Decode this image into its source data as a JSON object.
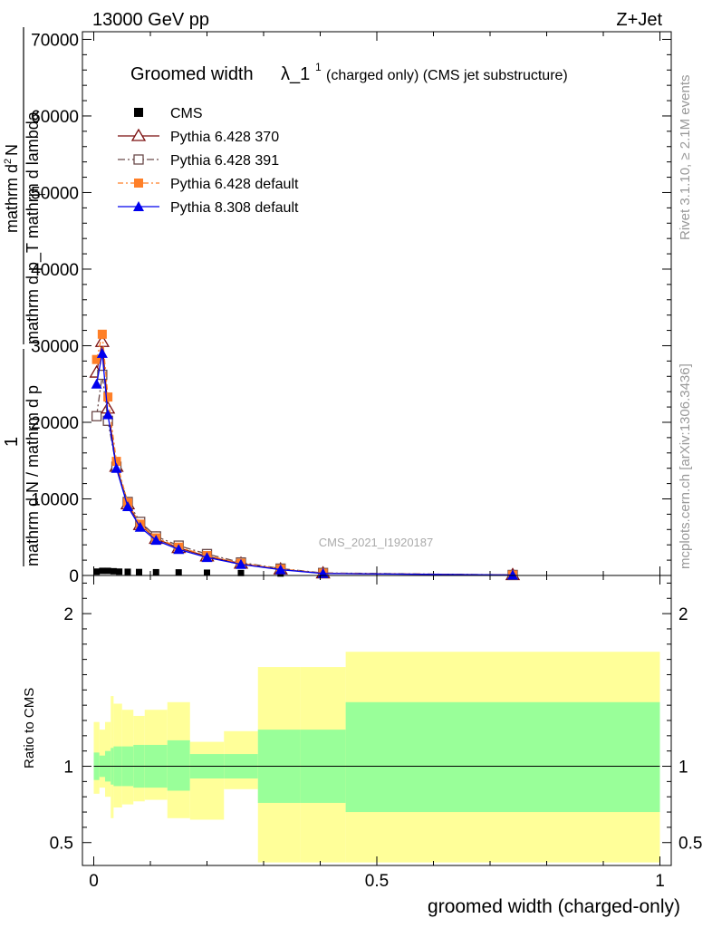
{
  "header": {
    "left": "13000 GeV pp",
    "right": "Z+Jet"
  },
  "side_labels": {
    "rivet": "Rivet 3.1.10, ≥ 2.1M events",
    "mcplots": "mcplots.cern.ch [arXiv:1306.3436]"
  },
  "chart_data": [
    {
      "type": "line",
      "title_main": "Groomed width",
      "title_lambda": "λ_1",
      "title_sup": "1",
      "title_rest": " (charged only) (CMS jet substructure)",
      "watermark": "CMS_2021_I1920187",
      "ylabel_num": "1",
      "ylabel_line1": "mathrm d N / mathrm d p",
      "ylabel_line1b": "mathrm d p",
      "ylabel_line2": "mathrm d",
      "ylabel_num2": "mathrm d",
      "ylabel_sup": "2",
      "ylabel_N": "N",
      "ylabel_den": "mathrm d p_T mathrm d lambda",
      "ylabel_sub": "T",
      "xlim": [
        -0.02,
        1.02
      ],
      "ylim": [
        0,
        71000
      ],
      "yticks": [
        0,
        10000,
        20000,
        30000,
        40000,
        50000,
        60000,
        70000
      ],
      "ytick_labels": [
        "0",
        "10000",
        "20000",
        "30000",
        "40000",
        "50000",
        "60000",
        "70000"
      ],
      "legend_position": "top-left",
      "series": [
        {
          "name": "CMS",
          "color": "#000000",
          "marker": "square",
          "x": [
            0.005,
            0.015,
            0.025,
            0.035,
            0.045,
            0.06,
            0.08,
            0.11,
            0.15,
            0.2,
            0.26,
            0.33,
            0.405,
            0.74
          ],
          "y": [
            500,
            600,
            600,
            550,
            500,
            480,
            450,
            420,
            400,
            360,
            320,
            250,
            180,
            40
          ]
        },
        {
          "name": "Pythia 6.428 370",
          "color": "#7b0f0f",
          "marker": "triangle-open",
          "dash": "",
          "x": [
            0.005,
            0.015,
            0.025,
            0.04,
            0.06,
            0.082,
            0.11,
            0.15,
            0.2,
            0.26,
            0.33,
            0.405,
            0.74
          ],
          "y": [
            26500,
            30500,
            21800,
            14200,
            9300,
            6600,
            4800,
            3600,
            2500,
            1550,
            800,
            280,
            60
          ]
        },
        {
          "name": "Pythia 6.428 391",
          "color": "#6b4a4a",
          "marker": "square-open",
          "dash": "8,3,2,3",
          "x": [
            0.005,
            0.015,
            0.025,
            0.04,
            0.06,
            0.082,
            0.11,
            0.15,
            0.2,
            0.26,
            0.33,
            0.405,
            0.74
          ],
          "y": [
            20800,
            26200,
            20200,
            14200,
            9600,
            7000,
            5100,
            3900,
            2800,
            1700,
            900,
            330,
            70
          ]
        },
        {
          "name": "Pythia 6.428 default",
          "color": "#ff7f27",
          "marker": "square",
          "dash": "6,3,2,3",
          "x": [
            0.005,
            0.015,
            0.025,
            0.04,
            0.06,
            0.082,
            0.11,
            0.15,
            0.2,
            0.26,
            0.33,
            0.405,
            0.74
          ],
          "y": [
            28200,
            31500,
            23300,
            14900,
            9500,
            6700,
            4900,
            3700,
            2600,
            1600,
            850,
            300,
            65
          ]
        },
        {
          "name": "Pythia 8.308 default",
          "color": "#0000ee",
          "marker": "triangle",
          "dash": "",
          "x": [
            0.005,
            0.015,
            0.025,
            0.04,
            0.06,
            0.082,
            0.11,
            0.15,
            0.2,
            0.26,
            0.33,
            0.405,
            0.74
          ],
          "y": [
            25000,
            29000,
            21000,
            14000,
            9000,
            6300,
            4600,
            3400,
            2350,
            1450,
            760,
            260,
            55
          ]
        }
      ]
    },
    {
      "type": "area",
      "ylabel": "Ratio to CMS",
      "xlabel": "groomed width (charged-only)",
      "xlim": [
        -0.02,
        1.02
      ],
      "ylim": [
        0.35,
        2.25
      ],
      "yticks": [
        0.5,
        1,
        2
      ],
      "ytick_labels": [
        "0.5",
        "1",
        "2"
      ],
      "xticks": [
        0,
        0.5,
        1
      ],
      "xtick_labels": [
        "0",
        "0.5",
        "1"
      ],
      "reference_line": 1,
      "bands": {
        "edges": [
          0,
          0.01,
          0.02,
          0.03,
          0.035,
          0.05,
          0.07,
          0.09,
          0.13,
          0.17,
          0.23,
          0.29,
          0.365,
          0.445,
          1.0
        ],
        "inner_color": "#99ff99",
        "outer_color": "#ffff99",
        "inner_low": [
          0.91,
          0.93,
          0.9,
          0.88,
          0.87,
          0.87,
          0.86,
          0.86,
          0.84,
          0.92,
          0.92,
          0.76,
          0.76,
          0.7
        ],
        "inner_high": [
          1.09,
          1.07,
          1.1,
          1.12,
          1.13,
          1.13,
          1.14,
          1.14,
          1.17,
          1.08,
          1.08,
          1.24,
          1.24,
          1.42
        ],
        "outer_low": [
          0.82,
          0.86,
          0.8,
          0.66,
          0.73,
          0.75,
          0.77,
          0.78,
          0.66,
          0.65,
          0.85,
          0.37,
          0.37,
          0.37
        ],
        "outer_high": [
          1.29,
          1.24,
          1.29,
          1.46,
          1.41,
          1.37,
          1.33,
          1.37,
          1.42,
          1.16,
          1.23,
          1.65,
          1.65,
          1.75
        ]
      }
    }
  ]
}
